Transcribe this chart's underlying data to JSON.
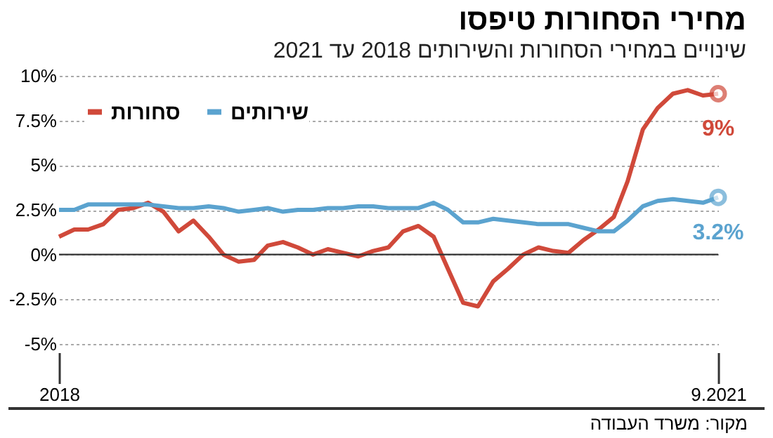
{
  "chart_data": {
    "type": "line",
    "title": "מחירי הסחורות טיפסו",
    "subtitle": "שינויים במחירי הסחורות והשירותים 2018 עד 2021",
    "annotations": [
      "מקור: משרד העבודה"
    ],
    "x": [
      "2018-01",
      "2018-02",
      "2018-03",
      "2018-04",
      "2018-05",
      "2018-06",
      "2018-07",
      "2018-08",
      "2018-09",
      "2018-10",
      "2018-11",
      "2018-12",
      "2019-01",
      "2019-02",
      "2019-03",
      "2019-04",
      "2019-05",
      "2019-06",
      "2019-07",
      "2019-08",
      "2019-09",
      "2019-10",
      "2019-11",
      "2019-12",
      "2020-01",
      "2020-02",
      "2020-03",
      "2020-04",
      "2020-05",
      "2020-06",
      "2020-07",
      "2020-08",
      "2020-09",
      "2020-10",
      "2020-11",
      "2020-12",
      "2021-01",
      "2021-02",
      "2021-03",
      "2021-04",
      "2021-05",
      "2021-06",
      "2021-07",
      "2021-08",
      "2021-09"
    ],
    "series": [
      {
        "name": "סחורות",
        "color": "#d0493a",
        "values": [
          1.0,
          1.4,
          1.4,
          1.7,
          2.5,
          2.6,
          2.9,
          2.4,
          1.3,
          1.9,
          1.0,
          0.0,
          -0.4,
          -0.3,
          0.5,
          0.7,
          0.4,
          0.0,
          0.3,
          0.1,
          -0.1,
          0.2,
          0.4,
          1.3,
          1.6,
          1.0,
          -0.8,
          -2.7,
          -2.9,
          -1.5,
          -0.8,
          0.0,
          0.4,
          0.2,
          0.1,
          0.8,
          1.4,
          2.1,
          4.1,
          7.0,
          8.2,
          9.0,
          9.2,
          8.9,
          9.0
        ],
        "value_labels": [
          null,
          null,
          null,
          null,
          null,
          null,
          null,
          null,
          null,
          null,
          null,
          null,
          null,
          null,
          null,
          null,
          null,
          null,
          null,
          null,
          null,
          null,
          null,
          null,
          null,
          null,
          null,
          null,
          null,
          null,
          null,
          null,
          null,
          null,
          null,
          null,
          null,
          null,
          null,
          null,
          null,
          null,
          null,
          null,
          "9%"
        ]
      },
      {
        "name": "שירותים",
        "color": "#5ba3cf",
        "values": [
          2.5,
          2.5,
          2.8,
          2.8,
          2.8,
          2.8,
          2.8,
          2.7,
          2.6,
          2.6,
          2.7,
          2.6,
          2.4,
          2.5,
          2.6,
          2.4,
          2.5,
          2.5,
          2.6,
          2.6,
          2.7,
          2.7,
          2.6,
          2.6,
          2.6,
          2.9,
          2.5,
          1.8,
          1.8,
          2.0,
          1.9,
          1.8,
          1.7,
          1.7,
          1.7,
          1.5,
          1.3,
          1.3,
          1.9,
          2.7,
          3.0,
          3.1,
          3.0,
          2.9,
          3.2
        ],
        "value_labels": [
          null,
          null,
          null,
          null,
          null,
          null,
          null,
          null,
          null,
          null,
          null,
          null,
          null,
          null,
          null,
          null,
          null,
          null,
          null,
          null,
          null,
          null,
          null,
          null,
          null,
          null,
          null,
          null,
          null,
          null,
          null,
          null,
          null,
          null,
          null,
          null,
          null,
          null,
          null,
          null,
          null,
          null,
          null,
          null,
          "3.2%"
        ]
      }
    ],
    "xlim": [
      "2018-01",
      "2021-09"
    ],
    "xticks": [
      {
        "value": "2018-01",
        "label": "2018"
      },
      {
        "value": "2021-09",
        "label": "9.2021"
      }
    ],
    "ylim": [
      -5,
      10
    ],
    "yticks": [
      {
        "value": -5,
        "label": "-5%"
      },
      {
        "value": -2.5,
        "label": "-2.5%"
      },
      {
        "value": 0,
        "label": "0%"
      },
      {
        "value": 2.5,
        "label": "2.5%"
      },
      {
        "value": 5,
        "label": "5%"
      },
      {
        "value": 7.5,
        "label": "7.5%"
      },
      {
        "value": 10,
        "label": "10%"
      }
    ],
    "ref_lines": [
      {
        "axis": "y",
        "value": 0,
        "color": "#333333"
      }
    ],
    "grid": "y",
    "legend": "top left"
  }
}
